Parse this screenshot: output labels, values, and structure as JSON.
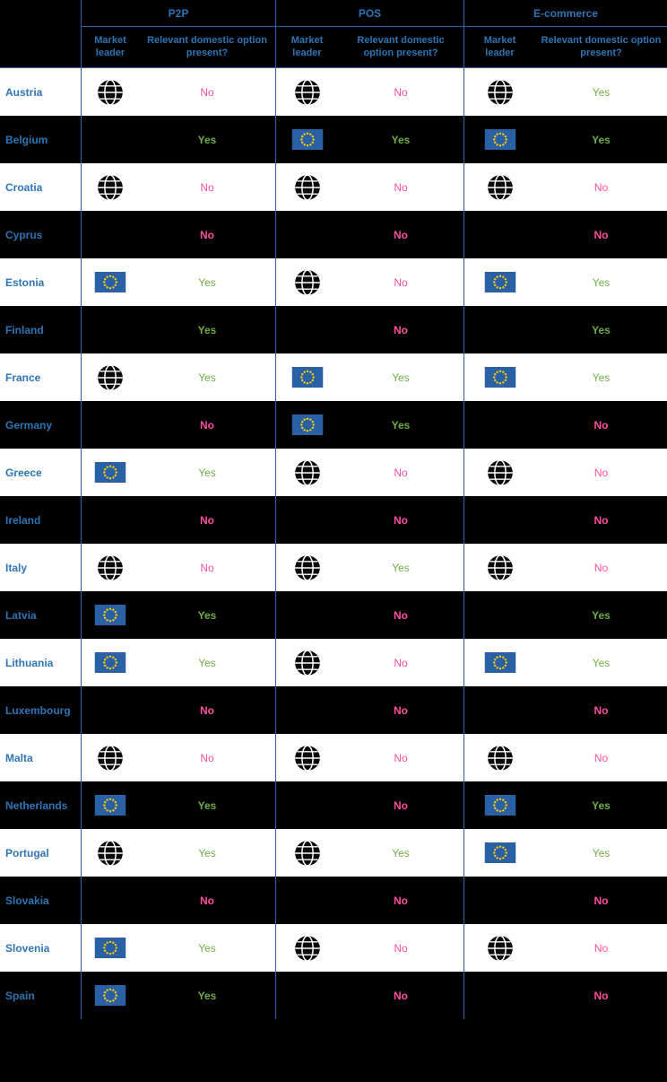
{
  "colors": {
    "page_bg": "#000000",
    "row_light": "#ffffff",
    "row_dark": "#000000",
    "header_text": "#2e74b5",
    "country_text": "#2e74b5",
    "yes": "#70ad47",
    "no": "#ff4fa0",
    "grid_line": "#2e5fa3",
    "eu_flag": "#2a61a5",
    "eu_star": "#ffcc00",
    "globe": "#0a0a0a"
  },
  "icons": {
    "globe": "globe-icon",
    "eu": "eu-flag-icon"
  },
  "chart_data": {
    "type": "table",
    "column_groups": [
      "P2P",
      "POS",
      "E-commerce"
    ],
    "sub_columns": [
      "Market leader",
      "Relevant domestic option present?"
    ],
    "rows": [
      {
        "country": "Austria",
        "p2p": {
          "leader": "globe",
          "domestic": "No"
        },
        "pos": {
          "leader": "globe",
          "domestic": "No"
        },
        "ecommerce": {
          "leader": "globe",
          "domestic": "Yes"
        }
      },
      {
        "country": "Belgium",
        "p2p": {
          "leader": "none",
          "domestic": "Yes"
        },
        "pos": {
          "leader": "eu",
          "domestic": "Yes"
        },
        "ecommerce": {
          "leader": "eu",
          "domestic": "Yes"
        }
      },
      {
        "country": "Croatia",
        "p2p": {
          "leader": "globe",
          "domestic": "No"
        },
        "pos": {
          "leader": "globe",
          "domestic": "No"
        },
        "ecommerce": {
          "leader": "globe",
          "domestic": "No"
        }
      },
      {
        "country": "Cyprus",
        "p2p": {
          "leader": "none",
          "domestic": "No"
        },
        "pos": {
          "leader": "none",
          "domestic": "No"
        },
        "ecommerce": {
          "leader": "none",
          "domestic": "No"
        }
      },
      {
        "country": "Estonia",
        "p2p": {
          "leader": "eu",
          "domestic": "Yes"
        },
        "pos": {
          "leader": "globe",
          "domestic": "No"
        },
        "ecommerce": {
          "leader": "eu",
          "domestic": "Yes"
        }
      },
      {
        "country": "Finland",
        "p2p": {
          "leader": "none",
          "domestic": "Yes"
        },
        "pos": {
          "leader": "none",
          "domestic": "No"
        },
        "ecommerce": {
          "leader": "none",
          "domestic": "Yes"
        }
      },
      {
        "country": "France",
        "p2p": {
          "leader": "globe",
          "domestic": "Yes"
        },
        "pos": {
          "leader": "eu",
          "domestic": "Yes"
        },
        "ecommerce": {
          "leader": "eu",
          "domestic": "Yes"
        }
      },
      {
        "country": "Germany",
        "p2p": {
          "leader": "none",
          "domestic": "No"
        },
        "pos": {
          "leader": "eu",
          "domestic": "Yes"
        },
        "ecommerce": {
          "leader": "none",
          "domestic": "No"
        }
      },
      {
        "country": "Greece",
        "p2p": {
          "leader": "eu",
          "domestic": "Yes"
        },
        "pos": {
          "leader": "globe",
          "domestic": "No"
        },
        "ecommerce": {
          "leader": "globe",
          "domestic": "No"
        }
      },
      {
        "country": "Ireland",
        "p2p": {
          "leader": "none",
          "domestic": "No"
        },
        "pos": {
          "leader": "none",
          "domestic": "No"
        },
        "ecommerce": {
          "leader": "none",
          "domestic": "No"
        }
      },
      {
        "country": "Italy",
        "p2p": {
          "leader": "globe",
          "domestic": "No"
        },
        "pos": {
          "leader": "globe",
          "domestic": "Yes"
        },
        "ecommerce": {
          "leader": "globe",
          "domestic": "No"
        }
      },
      {
        "country": "Latvia",
        "p2p": {
          "leader": "eu",
          "domestic": "Yes"
        },
        "pos": {
          "leader": "none",
          "domestic": "No"
        },
        "ecommerce": {
          "leader": "none",
          "domestic": "Yes"
        }
      },
      {
        "country": "Lithuania",
        "p2p": {
          "leader": "eu",
          "domestic": "Yes"
        },
        "pos": {
          "leader": "globe",
          "domestic": "No"
        },
        "ecommerce": {
          "leader": "eu",
          "domestic": "Yes"
        }
      },
      {
        "country": "Luxembourg",
        "p2p": {
          "leader": "none",
          "domestic": "No"
        },
        "pos": {
          "leader": "none",
          "domestic": "No"
        },
        "ecommerce": {
          "leader": "none",
          "domestic": "No"
        }
      },
      {
        "country": "Malta",
        "p2p": {
          "leader": "globe",
          "domestic": "No"
        },
        "pos": {
          "leader": "globe",
          "domestic": "No"
        },
        "ecommerce": {
          "leader": "globe",
          "domestic": "No"
        }
      },
      {
        "country": "Netherlands",
        "p2p": {
          "leader": "eu",
          "domestic": "Yes"
        },
        "pos": {
          "leader": "none",
          "domestic": "No"
        },
        "ecommerce": {
          "leader": "eu",
          "domestic": "Yes"
        }
      },
      {
        "country": "Portugal",
        "p2p": {
          "leader": "globe",
          "domestic": "Yes"
        },
        "pos": {
          "leader": "globe",
          "domestic": "Yes"
        },
        "ecommerce": {
          "leader": "eu",
          "domestic": "Yes"
        }
      },
      {
        "country": "Slovakia",
        "p2p": {
          "leader": "none",
          "domestic": "No"
        },
        "pos": {
          "leader": "none",
          "domestic": "No"
        },
        "ecommerce": {
          "leader": "none",
          "domestic": "No"
        }
      },
      {
        "country": "Slovenia",
        "p2p": {
          "leader": "eu",
          "domestic": "Yes"
        },
        "pos": {
          "leader": "globe",
          "domestic": "No"
        },
        "ecommerce": {
          "leader": "globe",
          "domestic": "No"
        }
      },
      {
        "country": "Spain",
        "p2p": {
          "leader": "eu",
          "domestic": "Yes"
        },
        "pos": {
          "leader": "none",
          "domestic": "No"
        },
        "ecommerce": {
          "leader": "none",
          "domestic": "No"
        }
      }
    ]
  }
}
